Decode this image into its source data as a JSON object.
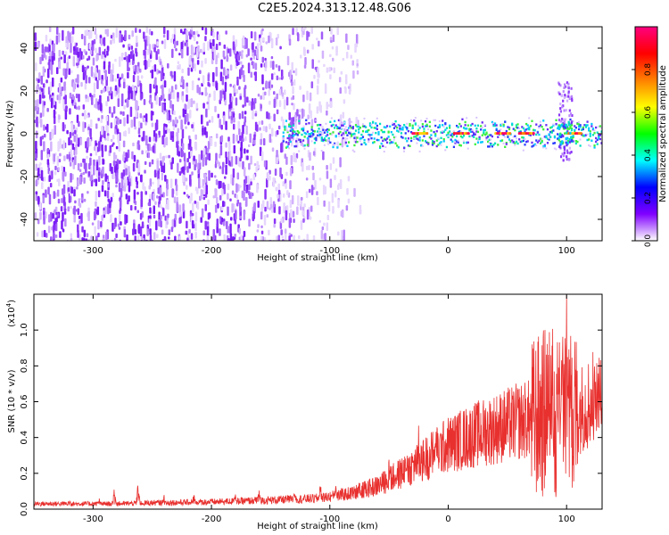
{
  "title": "C2E5.2024.313.12.48.G06",
  "chart_data": [
    {
      "type": "heatmap",
      "name": "spectrogram",
      "xlabel": "Height of straight line (km)",
      "ylabel": "Frequency (Hz)",
      "xlim": [
        -350,
        130
      ],
      "ylim": [
        -50,
        50
      ],
      "xticks": [
        -300,
        -200,
        -100,
        0,
        100
      ],
      "yticks": [
        -40,
        -20,
        0,
        20,
        40
      ],
      "colorbar": {
        "label": "Normalized spectral amplitude",
        "range": [
          0.0,
          1.0
        ],
        "ticks": [
          "0.0",
          "0.2",
          "0.4",
          "0.6",
          "0.8"
        ],
        "colors": [
          "#ffffff",
          "#8000ff",
          "#0000ff",
          "#00ffff",
          "#00ff00",
          "#ffff00",
          "#ff8000",
          "#ff0000",
          "#ff0080"
        ]
      },
      "noise_region_x": [
        -350,
        -75
      ],
      "signal_band": {
        "x_start": -140,
        "center_freq_hz": 0,
        "width_hz": [
          -6,
          6
        ],
        "bright_spot_x": [
          -25,
          10,
          45,
          65,
          105
        ],
        "burst_x": 98,
        "burst_freq_range": [
          -12,
          25
        ]
      }
    },
    {
      "type": "line",
      "name": "snr",
      "xlabel": "Height of straight line (km)",
      "ylabel": "SNR (10 * v/v)",
      "yscale_label": "(x10",
      "yscale_exp": "4",
      "yscale_suffix": ")",
      "xlim": [
        -350,
        130
      ],
      "ylim": [
        0,
        1.2
      ],
      "xticks": [
        -300,
        -200,
        -100,
        0,
        100
      ],
      "yticks": [
        "0.0",
        "0.2",
        "0.4",
        "0.6",
        "0.8",
        "1.0"
      ],
      "line_color": "#e8302e",
      "envelope": [
        [
          -350,
          0.03
        ],
        [
          -300,
          0.03
        ],
        [
          -280,
          0.03
        ],
        [
          -250,
          0.035
        ],
        [
          -200,
          0.04
        ],
        [
          -150,
          0.05
        ],
        [
          -110,
          0.06
        ],
        [
          -80,
          0.09
        ],
        [
          -60,
          0.13
        ],
        [
          -40,
          0.2
        ],
        [
          -20,
          0.28
        ],
        [
          -10,
          0.32
        ],
        [
          0,
          0.36
        ],
        [
          20,
          0.41
        ],
        [
          40,
          0.45
        ],
        [
          60,
          0.49
        ],
        [
          75,
          0.51
        ],
        [
          85,
          0.55
        ],
        [
          95,
          0.5
        ],
        [
          105,
          0.52
        ],
        [
          115,
          0.58
        ],
        [
          125,
          0.62
        ],
        [
          130,
          0.62
        ]
      ],
      "peaks": [
        [
          -320,
          0.06
        ],
        [
          -295,
          0.08
        ],
        [
          -282,
          0.13
        ],
        [
          -262,
          0.16
        ],
        [
          -240,
          0.08
        ],
        [
          -215,
          0.1
        ],
        [
          -180,
          0.11
        ],
        [
          -160,
          0.13
        ],
        [
          -130,
          0.12
        ],
        [
          -108,
          0.16
        ],
        [
          -95,
          0.15
        ],
        [
          -75,
          0.2
        ],
        [
          -50,
          0.3
        ],
        [
          -35,
          0.37
        ],
        [
          -25,
          0.47
        ],
        [
          -12,
          0.41
        ],
        [
          85,
          0.82
        ],
        [
          92,
          0.9
        ],
        [
          97,
          1.08
        ],
        [
          100,
          1.2
        ],
        [
          103,
          0.75
        ],
        [
          125,
          0.7
        ]
      ]
    }
  ]
}
